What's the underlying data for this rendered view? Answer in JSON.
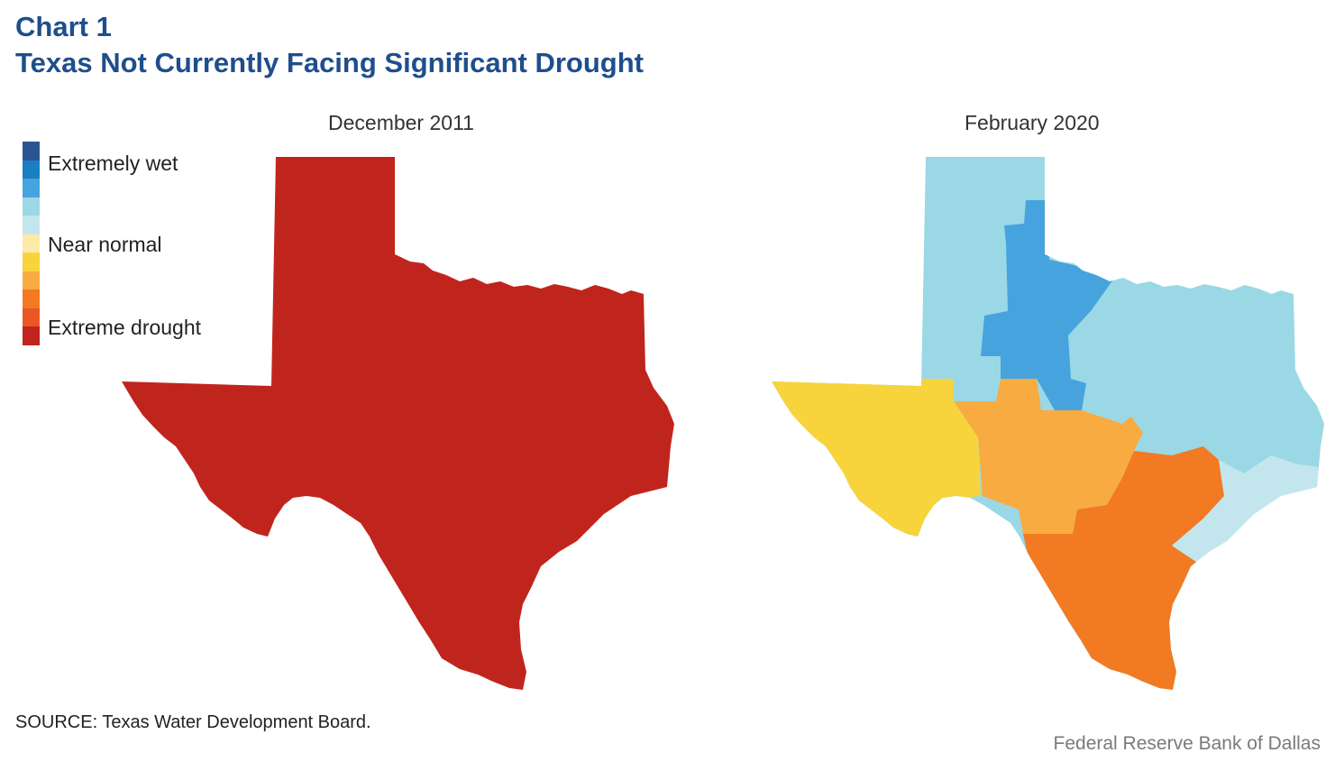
{
  "header": {
    "chart_number": "Chart 1",
    "title": "Texas Not Currently Facing Significant Drought"
  },
  "maps": [
    {
      "title": "December 2011"
    },
    {
      "title": "February 2020"
    }
  ],
  "legend": {
    "labels": [
      "Extremely wet",
      "Near normal",
      "Extreme drought"
    ],
    "colors": [
      "#2b5493",
      "#1a7ec4",
      "#46a3dd",
      "#9bd8e5",
      "#c3e6ee",
      "#fdeaa8",
      "#f7d43c",
      "#f8ab40",
      "#f27a22",
      "#ea5725",
      "#c0251d"
    ]
  },
  "region_colors": {
    "extreme_drought": "#c0251d",
    "wet_blue": "#46a3dd",
    "light_blue": "#9bd8e5",
    "pale_blue": "#c3e6ee",
    "yellow": "#f7d43c",
    "light_orange": "#f8ab40",
    "orange": "#f27a22"
  },
  "footer": {
    "source": "SOURCE: Texas Water Development Board.",
    "credit": "Federal Reserve Bank of Dallas"
  }
}
